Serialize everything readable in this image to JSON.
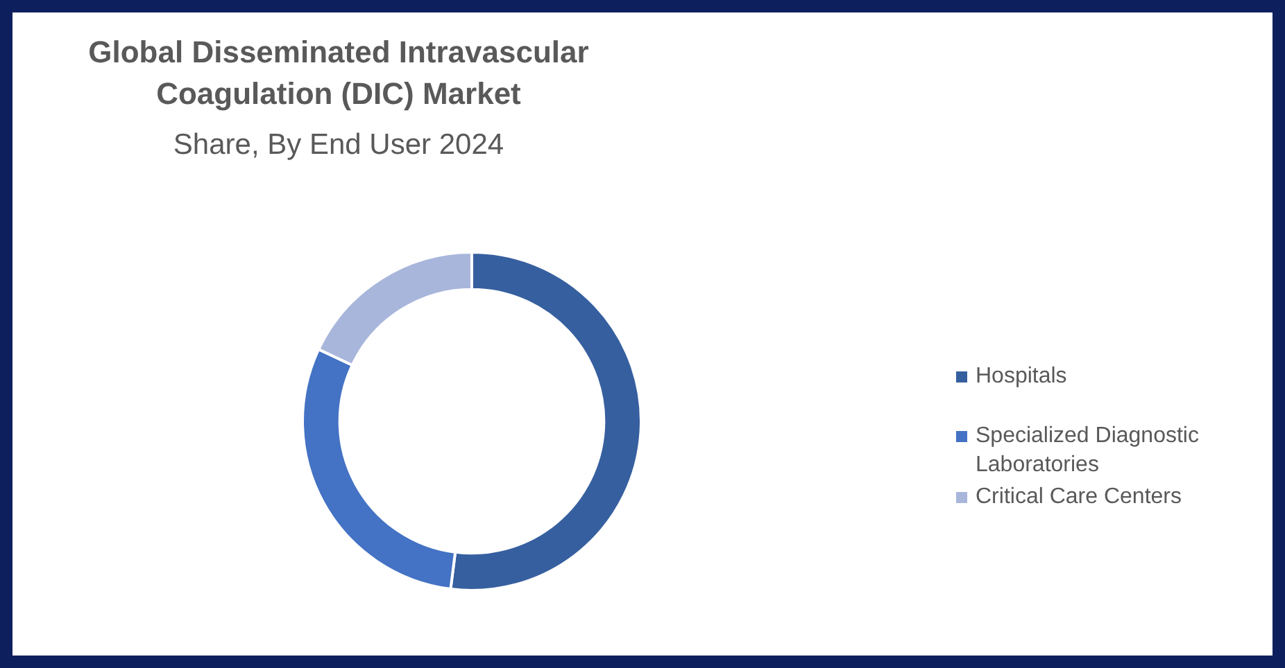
{
  "chart_data": {
    "type": "donut",
    "title": "Global Disseminated Intravascular Coagulation (DIC) Market",
    "subtitle": "Share, By End User 2024",
    "categories": [
      "Hospitals",
      "Specialized Diagnostic Laboratories",
      "Critical Care Centers"
    ],
    "values": [
      52,
      30,
      18
    ],
    "colors": [
      "#365f9f",
      "#4472c4",
      "#a8b6db"
    ],
    "legend": "right"
  }
}
